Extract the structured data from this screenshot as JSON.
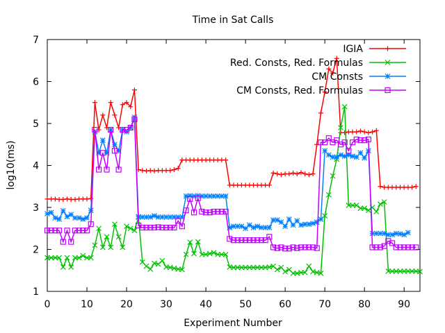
{
  "chart_data": {
    "type": "line",
    "title": "Time in Sat Calls",
    "xlabel": "Experiment Number",
    "ylabel": "log10(ms)",
    "xlim": [
      0,
      94
    ],
    "ylim": [
      1,
      7
    ],
    "xticks": [
      "0",
      "10",
      "20",
      "30",
      "40",
      "50",
      "60",
      "70",
      "80",
      "90"
    ],
    "yticks": [
      "1",
      "2",
      "3",
      "4",
      "5",
      "6",
      "7"
    ],
    "grid": false,
    "legend_position": "top-right",
    "series": [
      {
        "name": "IGIA",
        "color": "#ff0000",
        "marker": "plus",
        "values": [
          3.2,
          3.2,
          3.2,
          3.19,
          3.19,
          3.2,
          3.19,
          3.19,
          3.2,
          3.2,
          3.2,
          3.21,
          5.5,
          4.85,
          5.2,
          4.9,
          5.5,
          5.2,
          4.9,
          5.45,
          5.5,
          5.4,
          5.8,
          3.9,
          3.88,
          3.87,
          3.88,
          3.87,
          3.88,
          3.88,
          3.88,
          3.88,
          3.9,
          3.93,
          4.13,
          4.13,
          4.13,
          4.13,
          4.13,
          4.13,
          4.13,
          4.13,
          4.13,
          4.13,
          4.13,
          4.13,
          3.53,
          3.53,
          3.53,
          3.53,
          3.53,
          3.53,
          3.53,
          3.53,
          3.53,
          3.53,
          3.53,
          3.82,
          3.8,
          3.78,
          3.8,
          3.8,
          3.82,
          3.8,
          3.83,
          3.8,
          3.78,
          3.8,
          4.5,
          5.25,
          5.75,
          6.3,
          6.2,
          6.55,
          4.78,
          4.78,
          4.8,
          4.8,
          4.8,
          4.82,
          4.8,
          4.78,
          4.8,
          4.83,
          3.5,
          3.48,
          3.48,
          3.48,
          3.48,
          3.48,
          3.48,
          3.48,
          3.48,
          3.5
        ]
      },
      {
        "name": "Red. Consts, Red. Formulas",
        "color": "#00c000",
        "marker": "x",
        "values": [
          1.8,
          1.8,
          1.8,
          1.8,
          1.58,
          1.8,
          1.58,
          1.8,
          1.8,
          1.85,
          1.8,
          1.8,
          2.1,
          2.5,
          2.05,
          2.3,
          2.05,
          2.6,
          2.3,
          2.05,
          2.55,
          2.5,
          2.45,
          2.77,
          1.7,
          1.6,
          1.53,
          1.67,
          1.65,
          1.73,
          1.58,
          1.57,
          1.55,
          1.53,
          1.52,
          1.88,
          2.17,
          1.9,
          2.18,
          1.88,
          1.88,
          1.9,
          1.92,
          1.88,
          1.88,
          1.88,
          1.58,
          1.57,
          1.57,
          1.57,
          1.57,
          1.57,
          1.57,
          1.57,
          1.57,
          1.57,
          1.58,
          1.6,
          1.52,
          1.57,
          1.47,
          1.52,
          1.43,
          1.43,
          1.45,
          1.45,
          1.6,
          1.47,
          1.45,
          1.43,
          2.8,
          3.3,
          3.75,
          4.15,
          4.9,
          5.4,
          3.05,
          3.05,
          3.05,
          2.98,
          2.98,
          2.93,
          3.0,
          2.9,
          3.08,
          3.13,
          1.48,
          1.48,
          1.48,
          1.48,
          1.48,
          1.48,
          1.48,
          1.48,
          1.47
        ]
      },
      {
        "name": "CM Consts",
        "color": "#0080ff",
        "marker": "star",
        "values": [
          2.85,
          2.88,
          2.75,
          2.72,
          2.92,
          2.78,
          2.83,
          2.75,
          2.75,
          2.72,
          2.75,
          2.93,
          4.8,
          4.3,
          4.6,
          4.3,
          4.85,
          4.5,
          4.35,
          4.85,
          4.8,
          4.9,
          5.15,
          2.78,
          2.77,
          2.77,
          2.77,
          2.8,
          2.77,
          2.77,
          2.77,
          2.77,
          2.77,
          2.77,
          2.77,
          3.27,
          3.28,
          3.27,
          3.28,
          3.27,
          3.27,
          3.27,
          3.27,
          3.27,
          3.27,
          3.27,
          2.52,
          2.55,
          2.55,
          2.55,
          2.5,
          2.58,
          2.52,
          2.55,
          2.52,
          2.52,
          2.52,
          2.7,
          2.7,
          2.65,
          2.55,
          2.72,
          2.58,
          2.68,
          2.58,
          2.6,
          2.6,
          2.62,
          2.65,
          2.72,
          4.35,
          4.25,
          4.2,
          4.2,
          4.25,
          4.22,
          4.25,
          4.22,
          4.2,
          4.3,
          4.18,
          4.35,
          2.38,
          2.38,
          2.38,
          2.38,
          2.35,
          2.35,
          2.38,
          2.37,
          2.35,
          2.4
        ]
      },
      {
        "name": "CM Consts, Red. Formulas",
        "color": "#c000ff",
        "marker": "square",
        "values": [
          2.45,
          2.45,
          2.45,
          2.45,
          2.18,
          2.45,
          2.18,
          2.45,
          2.45,
          2.45,
          2.45,
          2.6,
          4.85,
          3.9,
          4.3,
          3.9,
          4.85,
          4.35,
          3.9,
          4.85,
          4.85,
          4.9,
          5.1,
          2.57,
          2.52,
          2.52,
          2.52,
          2.52,
          2.53,
          2.52,
          2.52,
          2.52,
          2.52,
          2.68,
          2.55,
          2.93,
          3.2,
          2.88,
          3.22,
          2.9,
          2.88,
          2.88,
          2.9,
          2.9,
          2.9,
          2.9,
          2.25,
          2.22,
          2.22,
          2.22,
          2.22,
          2.22,
          2.22,
          2.22,
          2.22,
          2.22,
          2.3,
          2.05,
          2.03,
          2.05,
          2.02,
          2.02,
          2.05,
          2.03,
          2.05,
          2.05,
          2.05,
          2.05,
          2.03,
          4.55,
          4.55,
          4.65,
          4.55,
          4.6,
          4.5,
          4.55,
          4.35,
          4.55,
          4.62,
          4.6,
          4.6,
          4.62,
          2.05,
          2.05,
          2.05,
          2.08,
          2.2,
          2.15,
          2.05,
          2.05,
          2.05,
          2.05,
          2.05,
          2.05
        ]
      }
    ]
  }
}
